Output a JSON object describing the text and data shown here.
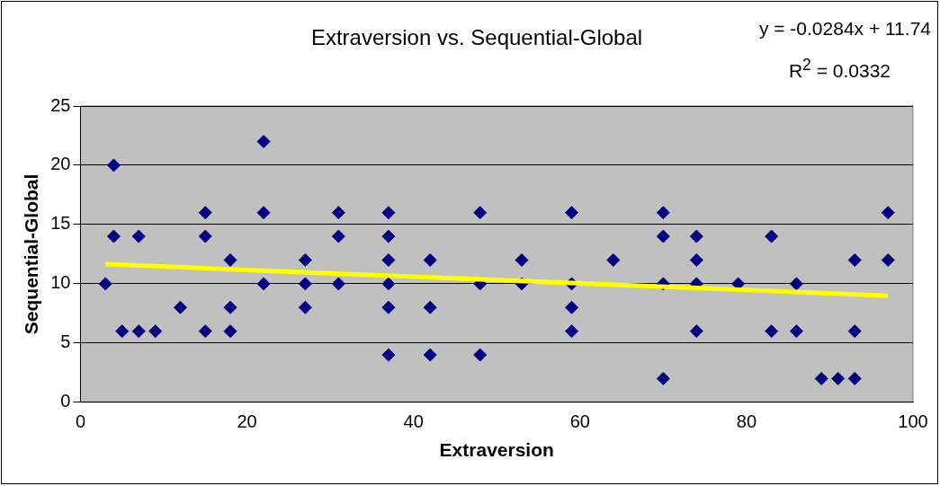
{
  "chart_data": {
    "type": "scatter",
    "title": "Extraversion vs. Sequential-Global",
    "xlabel": "Extraversion",
    "ylabel": "Sequential-Global",
    "annotations": [
      "y = -0.0284x + 11.74",
      "R$^{2}$ = 0.0332"
    ],
    "series": [
      {
        "type": "scatter",
        "color": "#000080",
        "marker": "diamond",
        "x": [
          3,
          4,
          4,
          5,
          7,
          7,
          9,
          12,
          15,
          15,
          15,
          18,
          18,
          18,
          22,
          22,
          22,
          27,
          27,
          27,
          31,
          31,
          31,
          37,
          37,
          37,
          37,
          37,
          37,
          42,
          42,
          42,
          48,
          48,
          48,
          53,
          53,
          59,
          59,
          59,
          59,
          64,
          70,
          70,
          70,
          70,
          74,
          74,
          74,
          74,
          79,
          83,
          83,
          86,
          86,
          89,
          91,
          93,
          93,
          93,
          97,
          97
        ],
        "values": [
          10,
          20,
          14,
          6,
          14,
          6,
          6,
          8,
          16,
          14,
          6,
          12,
          8,
          6,
          22,
          16,
          10,
          12,
          10,
          8,
          16,
          14,
          10,
          16,
          14,
          12,
          10,
          8,
          4,
          12,
          8,
          4,
          16,
          10,
          4,
          12,
          10,
          16,
          10,
          8,
          6,
          12,
          16,
          14,
          10,
          2,
          14,
          12,
          10,
          6,
          10,
          14,
          6,
          10,
          6,
          2,
          2,
          12,
          6,
          2,
          16,
          12
        ]
      },
      {
        "type": "line",
        "color": "#ffff00",
        "x": [
          3,
          97
        ],
        "values": [
          11.65,
          8.99
        ]
      }
    ],
    "xlim": [
      0,
      100
    ],
    "xticks": [
      0,
      20,
      40,
      60,
      80,
      100
    ],
    "ylim": [
      0,
      25
    ],
    "yticks": [
      0,
      5,
      10,
      15,
      20,
      25
    ],
    "grid": "y",
    "legend": false
  }
}
